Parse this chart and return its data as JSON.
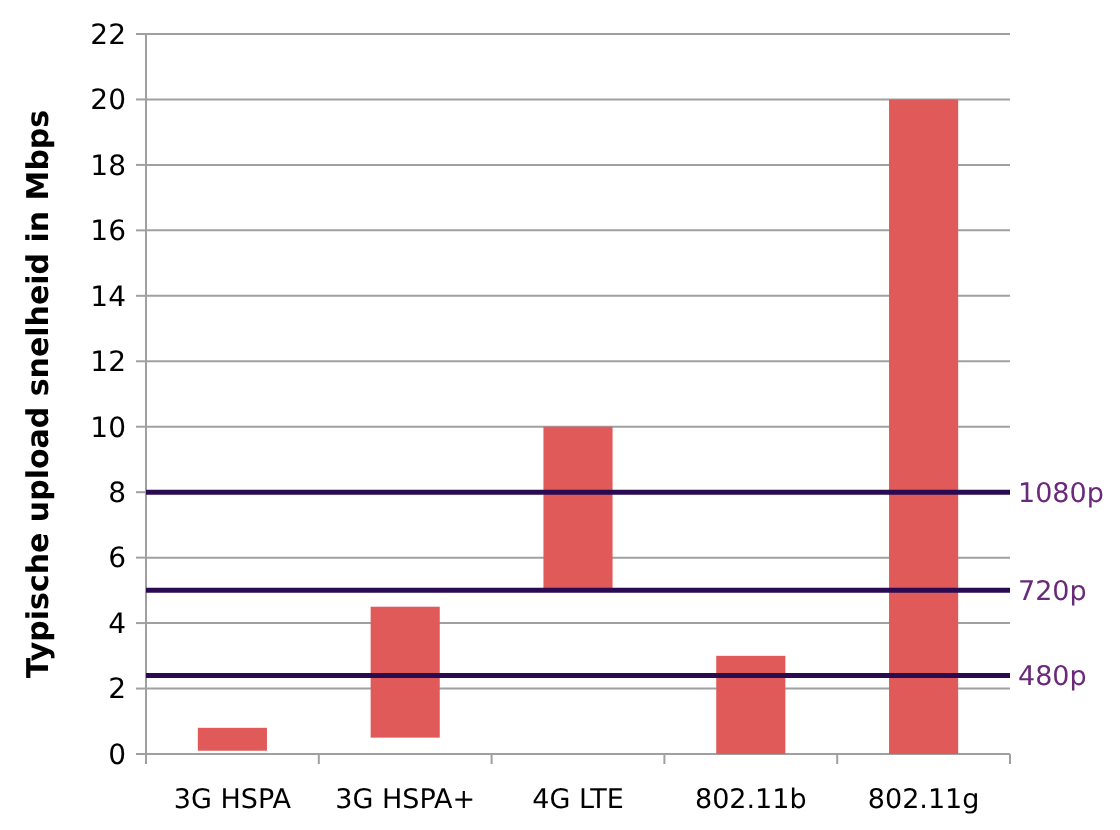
{
  "chart_data": {
    "type": "bar",
    "ylabel": "Typische upload snelheid in Mbps",
    "categories": [
      "3G HSPA",
      "3G HSPA+",
      "4G LTE",
      "802.11b",
      "802.11g"
    ],
    "values": [
      0.7,
      4,
      5,
      3,
      20
    ],
    "base": [
      0.1,
      0.5,
      5,
      0,
      0
    ],
    "color": "#e05a5a",
    "ylim": [
      0,
      22
    ],
    "yticks": [
      0,
      2,
      4,
      6,
      8,
      10,
      12,
      14,
      16,
      18,
      20,
      22
    ],
    "grid": "y",
    "ref_lines": [
      {
        "axis": "y",
        "value": 8,
        "label": "1080p",
        "color": "#2a0a50"
      },
      {
        "axis": "y",
        "value": 5,
        "label": "720p",
        "color": "#2a0a50"
      },
      {
        "axis": "y",
        "value": 2.4,
        "label": "480p",
        "color": "#2a0a50"
      }
    ]
  }
}
